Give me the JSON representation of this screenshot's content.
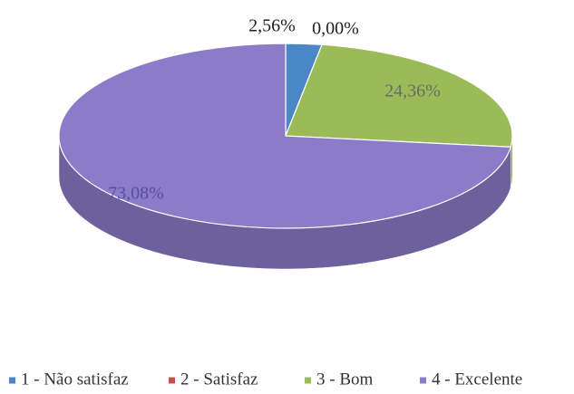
{
  "chart_data": {
    "type": "pie",
    "categories": [
      "1 - Não satisfaz",
      "2 - Satisfaz",
      "3 - Bom",
      "4 - Excelente"
    ],
    "values": [
      2.56,
      0.0,
      24.36,
      73.08
    ],
    "value_labels": [
      "2,56%",
      "0,00%",
      "24,36%",
      "73,08%"
    ],
    "colors": [
      "#4a86c8",
      "#c9504d",
      "#9bbb59",
      "#8a7cc8"
    ],
    "legend": "bottom"
  }
}
